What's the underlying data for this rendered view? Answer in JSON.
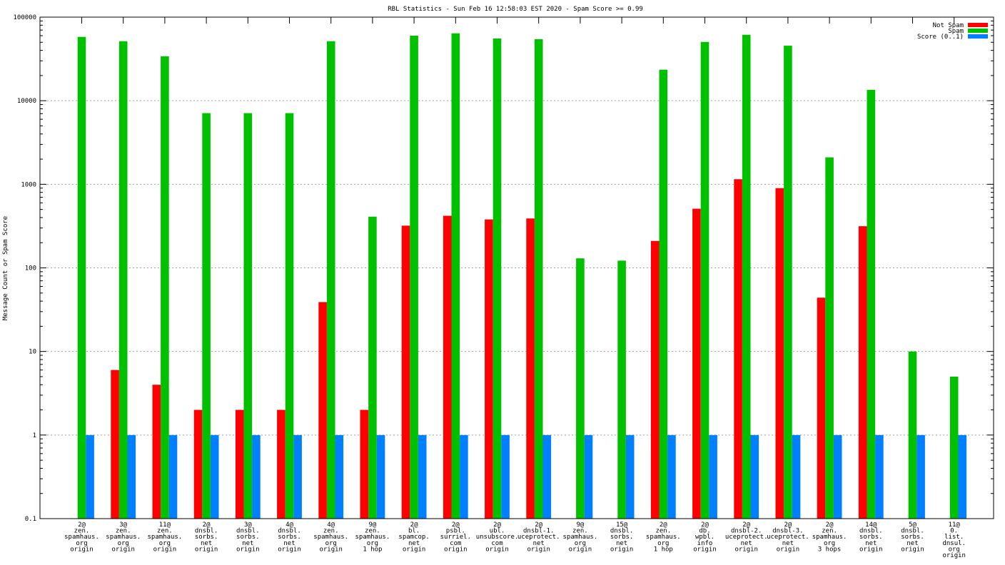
{
  "chart_data": {
    "type": "bar",
    "title": "RBL Statistics - Sun Feb 16 12:58:03 EST 2020 - Spam Score >= 0.99",
    "ylabel": "Message Count or Spam Score",
    "xlabel": "",
    "yscale": "log",
    "ylim": [
      0.1,
      100000
    ],
    "yticks": [
      "0.1",
      "1",
      "10",
      "100",
      "1000",
      "10000",
      "100000"
    ],
    "grid": true,
    "legend_position": "top-right",
    "categories": [
      [
        "2@",
        "zen.",
        "spamhaus.",
        "org",
        "origin"
      ],
      [
        "3@",
        "zen.",
        "spamhaus.",
        "org",
        "origin"
      ],
      [
        "11@",
        "zen.",
        "spamhaus.",
        "org",
        "origin"
      ],
      [
        "2@",
        "dnsbl.",
        "sorbs.",
        "net",
        "origin"
      ],
      [
        "3@",
        "dnsbl.",
        "sorbs.",
        "net",
        "origin"
      ],
      [
        "4@",
        "dnsbl.",
        "sorbs.",
        "net",
        "origin"
      ],
      [
        "4@",
        "zen.",
        "spamhaus.",
        "org",
        "origin"
      ],
      [
        "9@",
        "zen.",
        "spamhaus.",
        "org",
        "1 hop"
      ],
      [
        "2@",
        "bl.",
        "spamcop.",
        "net",
        "origin"
      ],
      [
        "2@",
        "psbl.",
        "surriel.",
        "com",
        "origin"
      ],
      [
        "2@",
        "ubl.",
        "unsubscore.",
        "com",
        "origin"
      ],
      [
        "2@",
        "dnsbl-1.",
        "uceprotect.",
        "net",
        "origin"
      ],
      [
        "9@",
        "zen.",
        "spamhaus.",
        "org",
        "origin"
      ],
      [
        "15@",
        "dnsbl.",
        "sorbs.",
        "net",
        "origin"
      ],
      [
        "2@",
        "zen.",
        "spamhaus.",
        "org",
        "1 hop"
      ],
      [
        "2@",
        "db.",
        "wpbl.",
        "info",
        "origin"
      ],
      [
        "2@",
        "dnsbl-2.",
        "uceprotect.",
        "net",
        "origin"
      ],
      [
        "2@",
        "dnsbl-3.",
        "uceprotect.",
        "net",
        "origin"
      ],
      [
        "2@",
        "zen.",
        "spamhaus.",
        "org",
        "3 hops"
      ],
      [
        "14@",
        "dnsbl.",
        "sorbs.",
        "net",
        "origin"
      ],
      [
        "5@",
        "dnsbl.",
        "sorbs.",
        "net",
        "origin"
      ],
      [
        "11@",
        "0.",
        "list.",
        "dnsul.",
        "org",
        "origin"
      ]
    ],
    "series": [
      {
        "name": "Not Spam",
        "color": "#ff0000",
        "values": [
          0,
          6,
          4,
          2,
          2,
          2,
          39,
          2,
          320,
          420,
          380,
          390,
          0,
          0,
          210,
          510,
          1150,
          900,
          44,
          315,
          0,
          0
        ]
      },
      {
        "name": "Spam",
        "color": "#00c000",
        "values": [
          58000,
          51500,
          34000,
          7100,
          7100,
          7100,
          51500,
          410,
          60000,
          64000,
          55500,
          54500,
          130,
          122,
          23500,
          50500,
          61500,
          45500,
          2100,
          13500,
          10,
          5
        ]
      },
      {
        "name": "Score (0..1)",
        "color": "#0080ff",
        "values": [
          1,
          1,
          1,
          1,
          1,
          1,
          1,
          1,
          1,
          1,
          1,
          1,
          1,
          1,
          1,
          1,
          1,
          1,
          1,
          1,
          1,
          1
        ]
      }
    ]
  }
}
